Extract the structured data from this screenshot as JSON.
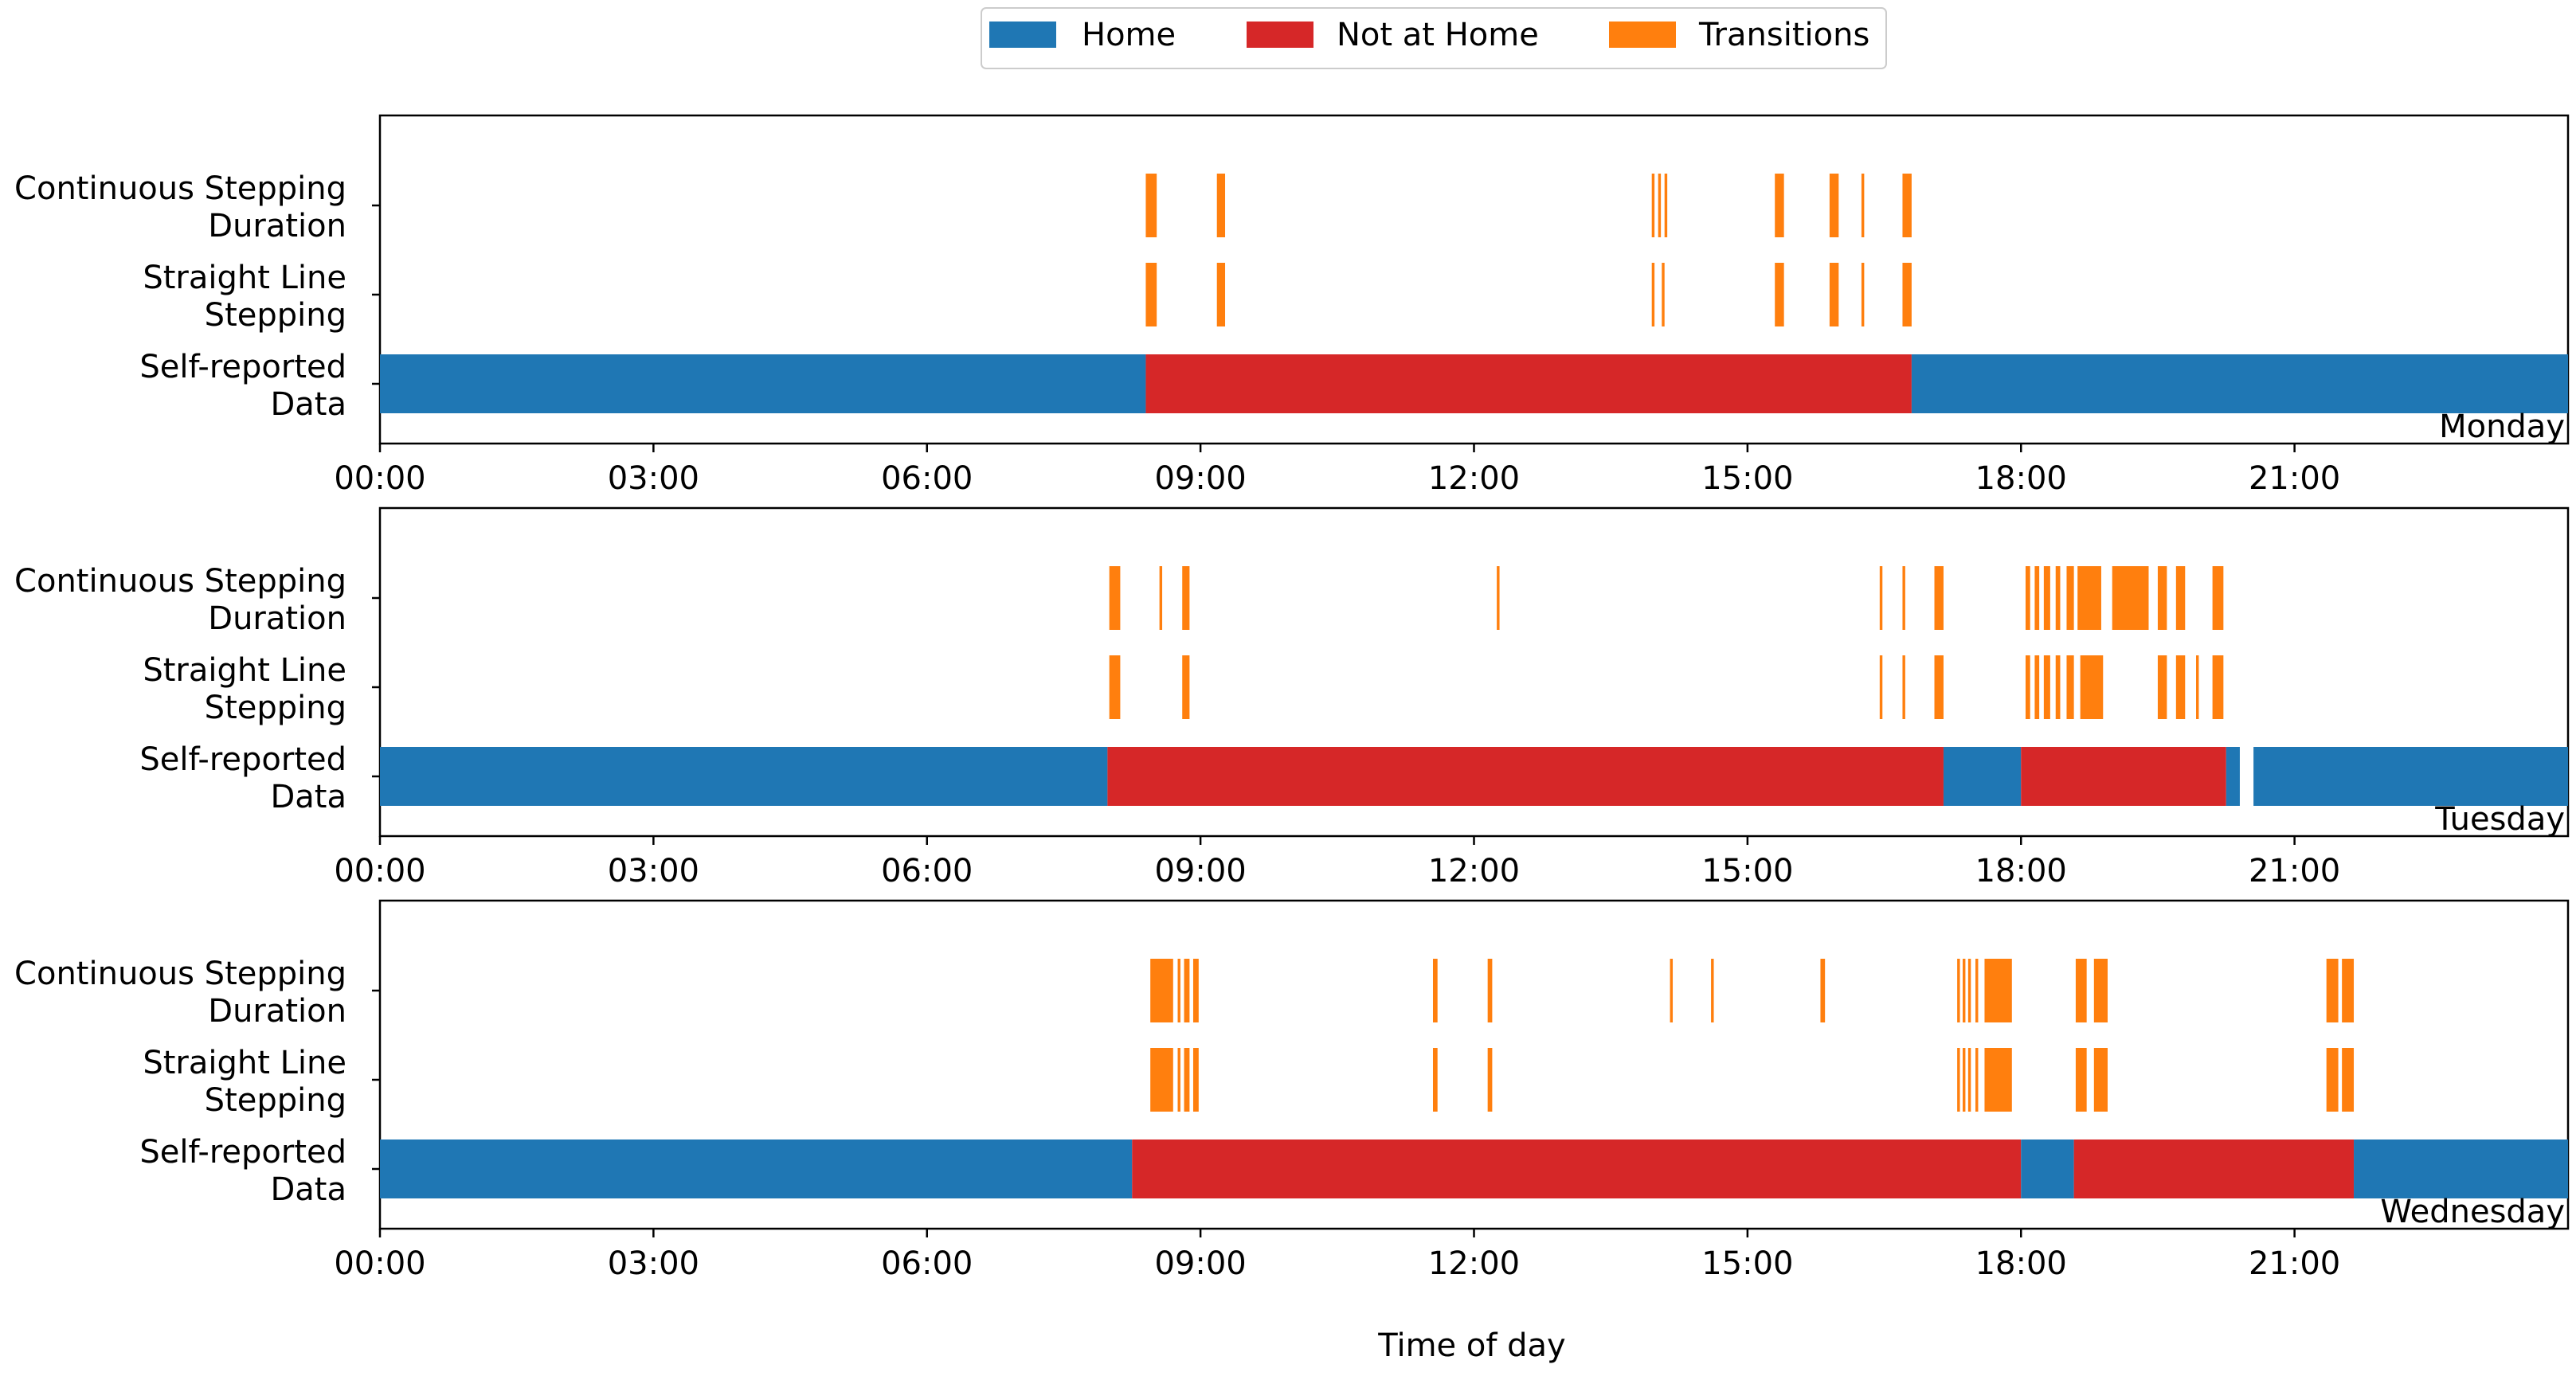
{
  "chart_data": {
    "type": "timeline",
    "xlabel": "Time of day",
    "x_range_hours": [
      0,
      24
    ],
    "x_ticks": [
      "00:00",
      "03:00",
      "06:00",
      "09:00",
      "12:00",
      "15:00",
      "18:00",
      "21:00"
    ],
    "categories": [
      "Self-reported Data",
      "Straight Line Stepping",
      "Continuous Stepping Duration"
    ],
    "category_labels": [
      [
        "Continuous Stepping",
        "Duration"
      ],
      [
        "Straight Line",
        "Stepping"
      ],
      [
        "Self-reported",
        "Data"
      ]
    ],
    "legend": [
      {
        "name": "Home",
        "key": "home"
      },
      {
        "name": "Not at Home",
        "key": "away"
      },
      {
        "name": "Transitions",
        "key": "transition"
      }
    ],
    "colors": {
      "home": "#1f77b4",
      "away": "#d62728",
      "transition": "#ff7f0e"
    },
    "days": [
      {
        "day": "Monday",
        "self_reported": [
          {
            "state": "home",
            "start": 0.0,
            "end": 8.4
          },
          {
            "state": "away",
            "start": 8.4,
            "end": 16.8
          },
          {
            "state": "home",
            "start": 16.8,
            "end": 24.0
          }
        ],
        "straight_line_stepping": [
          [
            8.4,
            8.52
          ],
          [
            9.18,
            9.27
          ],
          [
            13.95,
            13.98
          ],
          [
            14.06,
            14.09
          ],
          [
            15.3,
            15.4
          ],
          [
            15.9,
            16.0
          ],
          [
            16.25,
            16.28
          ],
          [
            16.7,
            16.8
          ]
        ],
        "continuous_stepping_duration": [
          [
            8.4,
            8.52
          ],
          [
            9.18,
            9.27
          ],
          [
            13.95,
            13.98
          ],
          [
            14.02,
            14.05
          ],
          [
            14.09,
            14.12
          ],
          [
            15.3,
            15.4
          ],
          [
            15.9,
            16.0
          ],
          [
            16.25,
            16.28
          ],
          [
            16.7,
            16.8
          ]
        ]
      },
      {
        "day": "Tuesday",
        "self_reported": [
          {
            "state": "home",
            "start": 0.0,
            "end": 7.98
          },
          {
            "state": "away",
            "start": 7.98,
            "end": 17.15
          },
          {
            "state": "home",
            "start": 17.15,
            "end": 18.0
          },
          {
            "state": "away",
            "start": 18.0,
            "end": 20.25
          },
          {
            "state": "home",
            "start": 20.25,
            "end": 20.4
          },
          {
            "state": "home",
            "start": 20.55,
            "end": 24.0
          }
        ],
        "straight_line_stepping": [
          [
            8.0,
            8.12
          ],
          [
            8.8,
            8.88
          ],
          [
            16.45,
            16.48
          ],
          [
            16.7,
            16.73
          ],
          [
            17.05,
            17.15
          ],
          [
            18.05,
            18.1
          ],
          [
            18.15,
            18.2
          ],
          [
            18.25,
            18.32
          ],
          [
            18.38,
            18.43
          ],
          [
            18.5,
            18.58
          ],
          [
            18.65,
            18.9
          ],
          [
            19.5,
            19.6
          ],
          [
            19.7,
            19.8
          ],
          [
            19.92,
            19.95
          ],
          [
            20.1,
            20.22
          ]
        ],
        "continuous_stepping_duration": [
          [
            8.0,
            8.12
          ],
          [
            8.55,
            8.58
          ],
          [
            8.8,
            8.88
          ],
          [
            12.25,
            12.28
          ],
          [
            16.45,
            16.48
          ],
          [
            16.7,
            16.73
          ],
          [
            17.05,
            17.15
          ],
          [
            18.05,
            18.1
          ],
          [
            18.15,
            18.2
          ],
          [
            18.25,
            18.32
          ],
          [
            18.38,
            18.43
          ],
          [
            18.5,
            18.58
          ],
          [
            18.62,
            18.88
          ],
          [
            19.0,
            19.4
          ],
          [
            19.5,
            19.6
          ],
          [
            19.7,
            19.8
          ],
          [
            20.1,
            20.22
          ]
        ]
      },
      {
        "day": "Wednesday",
        "self_reported": [
          {
            "state": "home",
            "start": 0.0,
            "end": 8.25
          },
          {
            "state": "away",
            "start": 8.25,
            "end": 18.0
          },
          {
            "state": "home",
            "start": 18.0,
            "end": 18.58
          },
          {
            "state": "away",
            "start": 18.58,
            "end": 21.65
          },
          {
            "state": "home",
            "start": 21.65,
            "end": 24.0
          }
        ],
        "straight_line_stepping": [
          [
            8.45,
            8.7
          ],
          [
            8.75,
            8.78
          ],
          [
            8.82,
            8.88
          ],
          [
            8.92,
            8.98
          ],
          [
            11.55,
            11.6
          ],
          [
            12.15,
            12.2
          ],
          [
            17.3,
            17.33
          ],
          [
            17.36,
            17.39
          ],
          [
            17.42,
            17.45
          ],
          [
            17.5,
            17.53
          ],
          [
            17.6,
            17.9
          ],
          [
            18.6,
            18.72
          ],
          [
            18.8,
            18.95
          ],
          [
            21.35,
            21.48
          ],
          [
            21.52,
            21.65
          ]
        ],
        "continuous_stepping_duration": [
          [
            8.45,
            8.7
          ],
          [
            8.75,
            8.78
          ],
          [
            8.82,
            8.88
          ],
          [
            8.92,
            8.98
          ],
          [
            11.55,
            11.6
          ],
          [
            12.15,
            12.2
          ],
          [
            14.15,
            14.18
          ],
          [
            14.6,
            14.63
          ],
          [
            15.8,
            15.85
          ],
          [
            17.3,
            17.33
          ],
          [
            17.36,
            17.39
          ],
          [
            17.42,
            17.45
          ],
          [
            17.5,
            17.53
          ],
          [
            17.6,
            17.9
          ],
          [
            18.6,
            18.72
          ],
          [
            18.8,
            18.95
          ],
          [
            21.35,
            21.48
          ],
          [
            21.52,
            21.65
          ]
        ]
      }
    ]
  }
}
